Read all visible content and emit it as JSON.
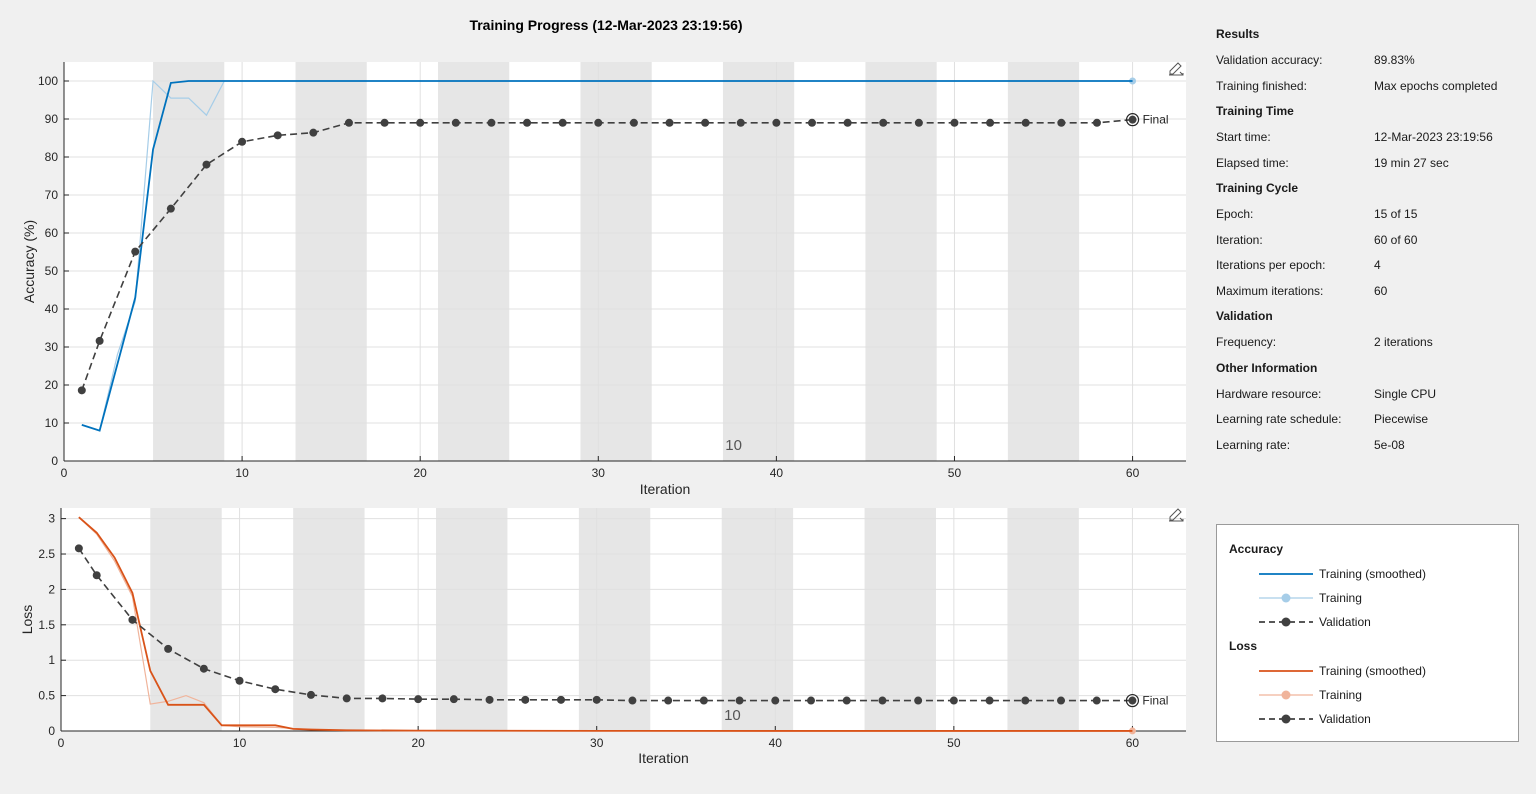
{
  "window": {
    "title": "Training Progress (12-Mar-2023 23:19:56)"
  },
  "colors": {
    "accuracy_smoothed": "#0072bd",
    "accuracy_training": "#a6cde8",
    "loss_smoothed": "#d95319",
    "loss_training": "#f0b49b",
    "validation": "#404040",
    "epoch_band": "#e6e6e6",
    "grid": "#e0e0e0"
  },
  "axes_toolbar": {
    "icon": "edit-pen-icon"
  },
  "chart_data": [
    {
      "type": "line",
      "name": "accuracy",
      "xlabel": "Iteration",
      "ylabel": "Accuracy (%)",
      "xlim": [
        0,
        63
      ],
      "ylim": [
        0,
        105
      ],
      "xticks": [
        0,
        10,
        20,
        30,
        40,
        50,
        60
      ],
      "yticks": [
        0,
        10,
        20,
        30,
        40,
        50,
        60,
        70,
        80,
        90,
        100
      ],
      "grid": true,
      "epoch_length": 4,
      "epoch_bands": [
        [
          5,
          9
        ],
        [
          13,
          17
        ],
        [
          21,
          25
        ],
        [
          29,
          33
        ],
        [
          37,
          41
        ],
        [
          45,
          49
        ],
        [
          53,
          57
        ]
      ],
      "annotation": "10",
      "annotation_x": 37.6,
      "final_label": "Final",
      "series": [
        {
          "name": "Training (smoothed)",
          "style": "smoothed",
          "color_key": "accuracy_smoothed",
          "x": [
            1,
            2,
            4,
            5,
            6,
            7,
            8,
            9,
            60
          ],
          "y": [
            9.5,
            8,
            43,
            82,
            99.5,
            100,
            100,
            100,
            100
          ]
        },
        {
          "name": "Training",
          "style": "raw",
          "color_key": "accuracy_training",
          "x": [
            1,
            2,
            3,
            4,
            5,
            6,
            7,
            8,
            9
          ],
          "y": [
            9.5,
            8,
            28,
            42,
            100,
            95.5,
            95.5,
            91,
            100
          ],
          "end_marker": [
            60,
            100
          ]
        },
        {
          "name": "Validation",
          "style": "validation",
          "color_key": "validation",
          "x": [
            1,
            2,
            4,
            6,
            8,
            10,
            12,
            14,
            16,
            18,
            20,
            22,
            24,
            26,
            28,
            30,
            32,
            34,
            36,
            38,
            40,
            42,
            44,
            46,
            48,
            50,
            52,
            54,
            56,
            58,
            60
          ],
          "y": [
            18.6,
            31.6,
            55.1,
            66.4,
            78,
            84,
            85.7,
            86.4,
            89,
            89,
            89,
            89,
            89,
            89,
            89,
            89,
            89,
            89,
            89,
            89,
            89,
            89,
            89,
            89,
            89,
            89,
            89,
            89,
            89,
            89,
            89.83
          ]
        }
      ]
    },
    {
      "type": "line",
      "name": "loss",
      "xlabel": "Iteration",
      "ylabel": "Loss",
      "xlim": [
        0,
        63
      ],
      "ylim": [
        0,
        3.15
      ],
      "xticks": [
        0,
        10,
        20,
        30,
        40,
        50,
        60
      ],
      "yticks": [
        0,
        0.5,
        1,
        1.5,
        2,
        2.5,
        3
      ],
      "grid": true,
      "epoch_length": 4,
      "epoch_bands": [
        [
          5,
          9
        ],
        [
          13,
          17
        ],
        [
          21,
          25
        ],
        [
          29,
          33
        ],
        [
          37,
          41
        ],
        [
          45,
          49
        ],
        [
          53,
          57
        ]
      ],
      "annotation": "10",
      "annotation_x": 37.6,
      "final_label": "Final",
      "series": [
        {
          "name": "Training (smoothed)",
          "style": "smoothed",
          "color_key": "loss_smoothed",
          "x": [
            1,
            2,
            3,
            4,
            5,
            6,
            7,
            8,
            9,
            10,
            11,
            12,
            13,
            14,
            16,
            20,
            30,
            40,
            50,
            60
          ],
          "y": [
            3.02,
            2.8,
            2.45,
            1.95,
            0.85,
            0.37,
            0.37,
            0.37,
            0.08,
            0.08,
            0.08,
            0.08,
            0.03,
            0.02,
            0.01,
            0.005,
            0.002,
            0.001,
            0.001,
            0.001
          ]
        },
        {
          "name": "Training",
          "style": "raw",
          "color_key": "loss_training",
          "x": [
            1,
            2,
            3,
            4,
            5,
            6,
            7,
            8,
            9,
            10,
            12,
            14,
            16,
            20
          ],
          "y": [
            3.02,
            2.78,
            2.4,
            1.9,
            0.38,
            0.42,
            0.5,
            0.4,
            0.08,
            0.06,
            0.05,
            0.02,
            0.01,
            0.005
          ],
          "end_marker": [
            60,
            0.001
          ]
        },
        {
          "name": "Validation",
          "style": "validation",
          "color_key": "validation",
          "x": [
            1,
            2,
            4,
            6,
            8,
            10,
            12,
            14,
            16,
            18,
            20,
            22,
            24,
            26,
            28,
            30,
            32,
            34,
            36,
            38,
            40,
            42,
            44,
            46,
            48,
            50,
            52,
            54,
            56,
            58,
            60
          ],
          "y": [
            2.58,
            2.2,
            1.57,
            1.16,
            0.88,
            0.71,
            0.59,
            0.51,
            0.46,
            0.46,
            0.45,
            0.45,
            0.44,
            0.44,
            0.44,
            0.44,
            0.43,
            0.43,
            0.43,
            0.43,
            0.43,
            0.43,
            0.43,
            0.43,
            0.43,
            0.43,
            0.43,
            0.43,
            0.43,
            0.43,
            0.43
          ]
        }
      ]
    }
  ],
  "info": {
    "sections": [
      {
        "title": "Results",
        "rows": [
          {
            "label": "Validation accuracy:",
            "value": "89.83%"
          },
          {
            "label": "Training finished:",
            "value": "Max epochs completed"
          }
        ]
      },
      {
        "title": "Training Time",
        "rows": [
          {
            "label": "Start time:",
            "value": "12-Mar-2023 23:19:56"
          },
          {
            "label": "Elapsed time:",
            "value": "19 min 27 sec"
          }
        ]
      },
      {
        "title": "Training Cycle",
        "rows": [
          {
            "label": "Epoch:",
            "value": "15 of 15"
          },
          {
            "label": "Iteration:",
            "value": "60 of 60"
          },
          {
            "label": "Iterations per epoch:",
            "value": "4"
          },
          {
            "label": "Maximum iterations:",
            "value": "60"
          }
        ]
      },
      {
        "title": "Validation",
        "rows": [
          {
            "label": "Frequency:",
            "value": "2 iterations"
          }
        ]
      },
      {
        "title": "Other Information",
        "rows": [
          {
            "label": "Hardware resource:",
            "value": "Single CPU"
          },
          {
            "label": "Learning rate schedule:",
            "value": "Piecewise"
          },
          {
            "label": "Learning rate:",
            "value": "5e-08"
          }
        ]
      }
    ]
  },
  "legend": {
    "groups": [
      {
        "title": "Accuracy",
        "entries": [
          {
            "label": "Training (smoothed)",
            "style": "smoothed",
            "color_key": "accuracy_smoothed"
          },
          {
            "label": "Training",
            "style": "raw",
            "color_key": "accuracy_training"
          },
          {
            "label": "Validation",
            "style": "validation",
            "color_key": "validation"
          }
        ]
      },
      {
        "title": "Loss",
        "entries": [
          {
            "label": "Training (smoothed)",
            "style": "smoothed",
            "color_key": "loss_smoothed"
          },
          {
            "label": "Training",
            "style": "raw",
            "color_key": "loss_training"
          },
          {
            "label": "Validation",
            "style": "validation",
            "color_key": "validation"
          }
        ]
      }
    ]
  }
}
